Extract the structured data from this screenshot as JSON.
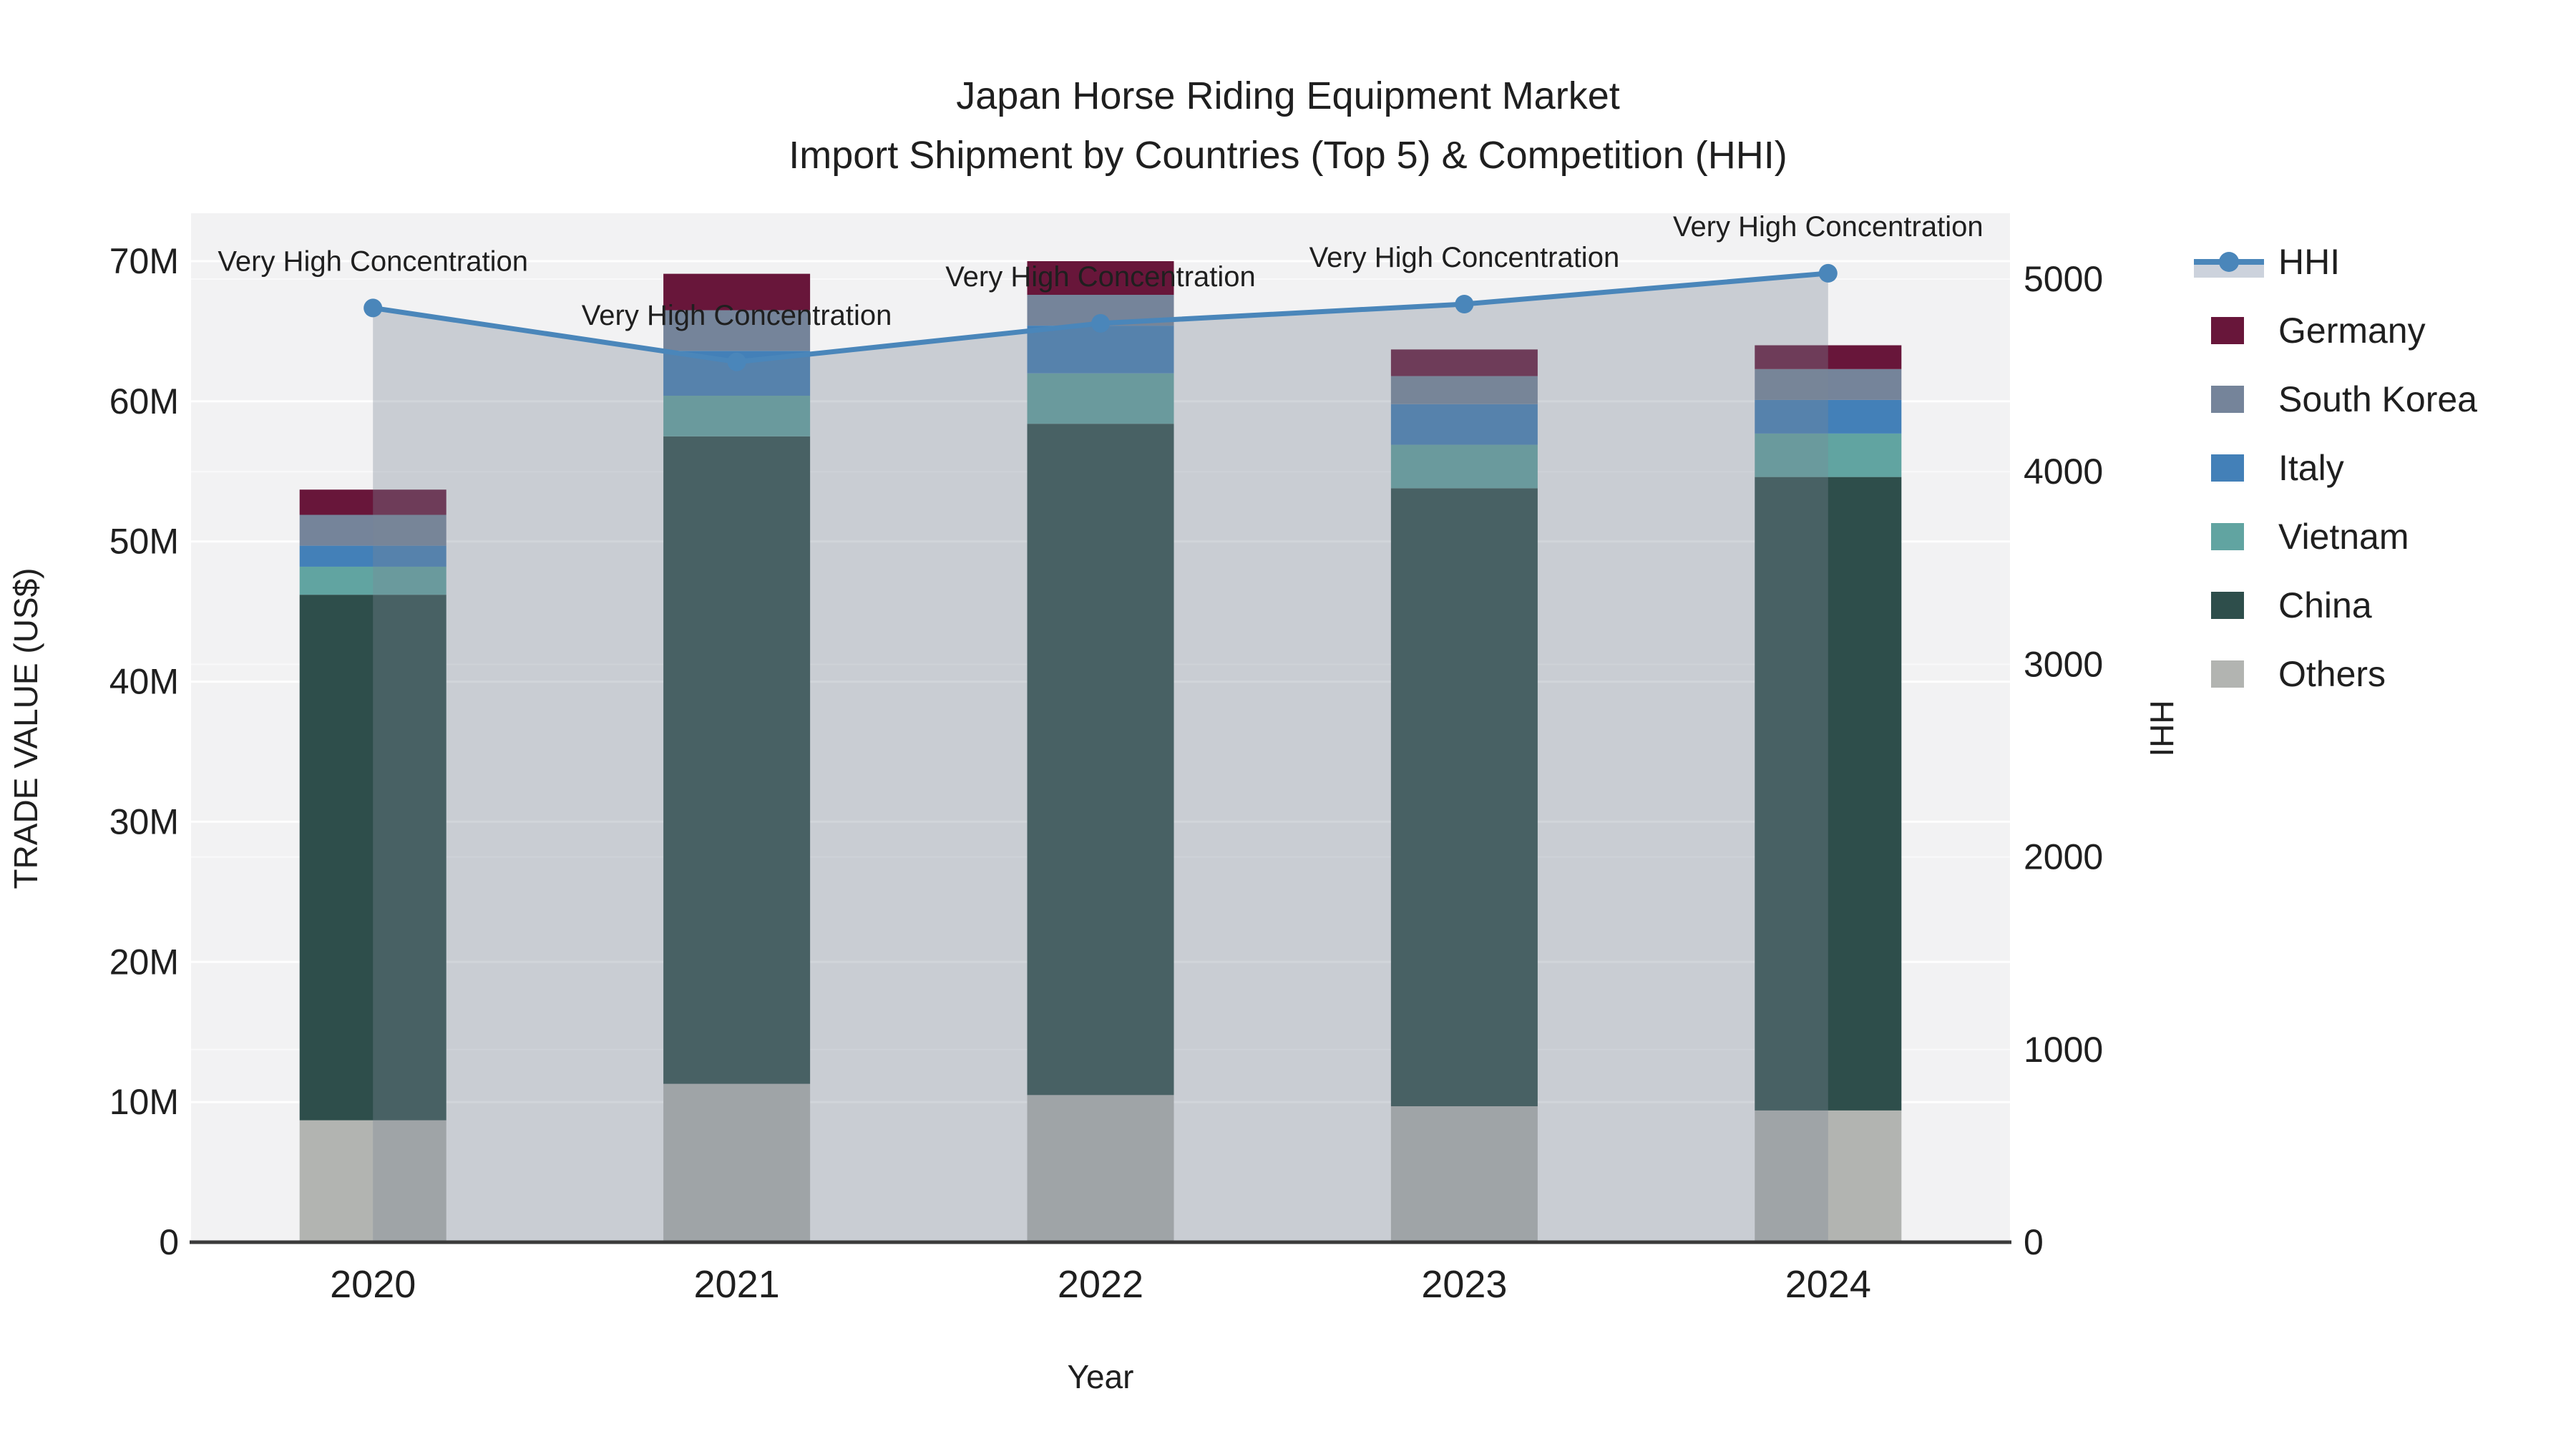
{
  "title": {
    "line1": "Japan Horse Riding Equipment Market",
    "line2": "Import Shipment by Countries (Top 5) & Competition (HHI)"
  },
  "axes": {
    "left": {
      "title": "TRADE VALUE (US$)",
      "ticks": [
        {
          "label": "0",
          "value": 0
        },
        {
          "label": "10M",
          "value": 10
        },
        {
          "label": "20M",
          "value": 20
        },
        {
          "label": "30M",
          "value": 30
        },
        {
          "label": "40M",
          "value": 40
        },
        {
          "label": "50M",
          "value": 50
        },
        {
          "label": "60M",
          "value": 60
        },
        {
          "label": "70M",
          "value": 70
        }
      ]
    },
    "right": {
      "title": "HHI",
      "ticks": [
        {
          "label": "0",
          "value": 0
        },
        {
          "label": "1000",
          "value": 1000
        },
        {
          "label": "2000",
          "value": 2000
        },
        {
          "label": "3000",
          "value": 3000
        },
        {
          "label": "4000",
          "value": 4000
        },
        {
          "label": "5000",
          "value": 5000
        }
      ]
    },
    "x": {
      "title": "Year",
      "categories": [
        "2020",
        "2021",
        "2022",
        "2023",
        "2024"
      ]
    }
  },
  "legend": {
    "items": [
      {
        "label": "HHI",
        "type": "line",
        "color": "#4a86ba",
        "band_color": "#ccd2dc"
      },
      {
        "label": "Germany",
        "type": "swatch",
        "color": "#68163a"
      },
      {
        "label": "South Korea",
        "type": "swatch",
        "color": "#75849a"
      },
      {
        "label": "Italy",
        "type": "swatch",
        "color": "#4380b8"
      },
      {
        "label": "Vietnam",
        "type": "swatch",
        "color": "#61a4a1"
      },
      {
        "label": "China",
        "type": "swatch",
        "color": "#2e4e4b"
      },
      {
        "label": "Others",
        "type": "swatch",
        "color": "#b2b4b1"
      }
    ]
  },
  "chart_data": {
    "type": "combo: stacked bar (left axis) + line with area (right axis)",
    "categories": [
      "2020",
      "2021",
      "2022",
      "2023",
      "2024"
    ],
    "bar_value_unit": "million US$",
    "stack_order_bottom_to_top": [
      "Others",
      "China",
      "Vietnam",
      "Italy",
      "South Korea",
      "Germany"
    ],
    "series": [
      {
        "name": "Others",
        "color": "#b2b4b1",
        "values": [
          8.7,
          11.3,
          10.5,
          9.7,
          9.4
        ]
      },
      {
        "name": "China",
        "color": "#2e4e4b",
        "values": [
          37.5,
          46.2,
          47.9,
          44.1,
          45.2
        ]
      },
      {
        "name": "Vietnam",
        "color": "#61a4a1",
        "values": [
          2.0,
          2.9,
          3.6,
          3.1,
          3.1
        ]
      },
      {
        "name": "Italy",
        "color": "#4380b8",
        "values": [
          1.5,
          3.2,
          3.4,
          2.9,
          2.4
        ]
      },
      {
        "name": "South Korea",
        "color": "#75849a",
        "values": [
          2.2,
          2.9,
          2.2,
          2.0,
          2.2
        ]
      },
      {
        "name": "Germany",
        "color": "#68163a",
        "values": [
          1.8,
          2.6,
          2.4,
          1.9,
          1.7
        ]
      }
    ],
    "bar_totals_musd": [
      53.7,
      69.1,
      70.0,
      63.7,
      64.0
    ],
    "line_series": {
      "name": "HHI",
      "color": "#4a86ba",
      "area_fill": "rgba(124,134,150,0.34)",
      "values": [
        4850,
        4570,
        4770,
        4870,
        5030
      ],
      "point_annotations": [
        "Very High Concentration",
        "Very High Concentration",
        "Very High Concentration",
        "Very High Concentration",
        "Very High Concentration"
      ]
    },
    "ylim_left_musd": [
      0,
      73.4
    ],
    "ylim_right_hhi": [
      0,
      5345
    ],
    "grid": true,
    "legend_position": "right",
    "plot_background": "#f2f2f3"
  }
}
